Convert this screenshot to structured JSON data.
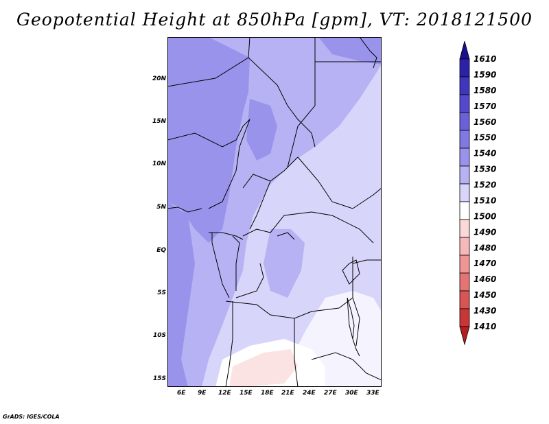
{
  "title": "Geopotential Height at 850hPa [gpm], VT: 2018121500",
  "credit": "GrADS: IGES/COLA",
  "map": {
    "lat_labels": [
      "20N",
      "15N",
      "10N",
      "5N",
      "EQ",
      "5S",
      "10S",
      "15S"
    ],
    "lon_labels": [
      "6E",
      "9E",
      "12E",
      "15E",
      "18E",
      "21E",
      "24E",
      "27E",
      "30E",
      "33E"
    ]
  },
  "colorbar": {
    "levels": [
      "1610",
      "1590",
      "1580",
      "1570",
      "1560",
      "1550",
      "1540",
      "1530",
      "1520",
      "1510",
      "1500",
      "1490",
      "1480",
      "1470",
      "1460",
      "1450",
      "1430",
      "1410"
    ],
    "colors": [
      "#1a0f8f",
      "#2c22a8",
      "#3f36bd",
      "#5449cc",
      "#6a60d8",
      "#8179e3",
      "#9a93ec",
      "#b7b2f3",
      "#d7d5fa",
      "#ffffff",
      "#fbd9d9",
      "#f6b8b8",
      "#ee9696",
      "#e57575",
      "#d95555",
      "#c83737",
      "#b51e1e"
    ]
  }
}
